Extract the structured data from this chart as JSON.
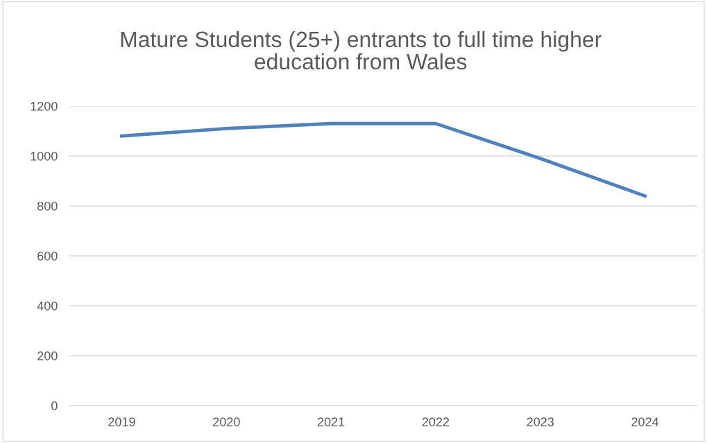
{
  "chart_data": {
    "type": "line",
    "title": "Mature Students (25+) entrants to full time higher\neducation from Wales",
    "categories": [
      "2019",
      "2020",
      "2021",
      "2022",
      "2023",
      "2024"
    ],
    "series": [
      {
        "color": "#4f81bd",
        "values": [
          1080,
          1110,
          1130,
          1130,
          990,
          840
        ]
      }
    ],
    "ylim": [
      0,
      1200
    ],
    "yticks": [
      0,
      200,
      400,
      600,
      800,
      1000,
      1200
    ],
    "grid": "y",
    "marker": "none",
    "line_style": "solid"
  }
}
